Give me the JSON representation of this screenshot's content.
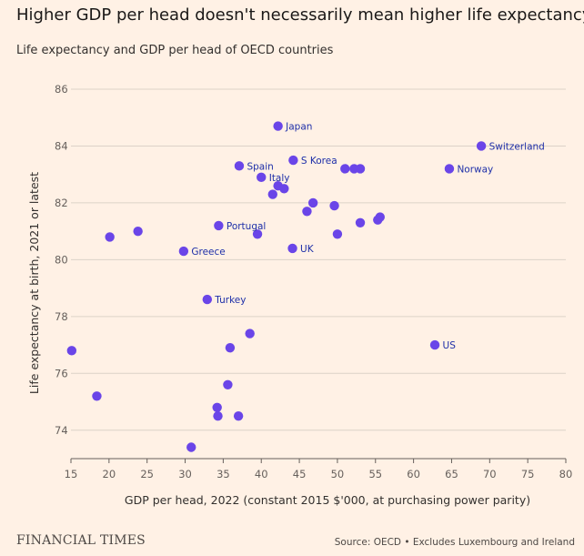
{
  "header": {
    "title": "Higher GDP per head doesn't necessarily mean higher life expectancy",
    "subtitle": "Life expectancy and GDP per head of OECD countries"
  },
  "footer": {
    "publisher": "FINANCIAL TIMES",
    "source": "Source: OECD • Excludes Luxembourg and Ireland"
  },
  "colors": {
    "background": "#fff1e5",
    "point": "#6a45e8",
    "label": "#1e2fa8",
    "grid": "#dcd2c8"
  },
  "chart_data": {
    "type": "scatter",
    "xlabel": "GDP per head, 2022 (constant 2015 $'000, at purchasing power parity)",
    "ylabel": "Life expectancy at birth, 2021 or latest",
    "xlim": [
      15,
      80
    ],
    "ylim": [
      73,
      86
    ],
    "x_ticks": [
      15,
      20,
      25,
      30,
      35,
      40,
      45,
      50,
      55,
      60,
      65,
      70,
      75,
      80
    ],
    "y_ticks": [
      74,
      76,
      78,
      80,
      82,
      84,
      86
    ],
    "grid": "horizontal",
    "points": [
      {
        "x": 42.2,
        "y": 84.7,
        "label": "Japan"
      },
      {
        "x": 68.9,
        "y": 84.0,
        "label": "Switzerland"
      },
      {
        "x": 37.1,
        "y": 83.3,
        "label": "Spain"
      },
      {
        "x": 44.2,
        "y": 83.5,
        "label": "S Korea"
      },
      {
        "x": 64.7,
        "y": 83.2,
        "label": "Norway"
      },
      {
        "x": 51.0,
        "y": 83.2
      },
      {
        "x": 52.2,
        "y": 83.2
      },
      {
        "x": 53.0,
        "y": 83.2
      },
      {
        "x": 40.0,
        "y": 82.9,
        "label": "Italy"
      },
      {
        "x": 42.2,
        "y": 82.6
      },
      {
        "x": 43.0,
        "y": 82.5
      },
      {
        "x": 41.5,
        "y": 82.3
      },
      {
        "x": 46.8,
        "y": 82.0
      },
      {
        "x": 49.6,
        "y": 81.9
      },
      {
        "x": 46.0,
        "y": 81.7
      },
      {
        "x": 55.6,
        "y": 81.5
      },
      {
        "x": 55.3,
        "y": 81.4
      },
      {
        "x": 53.0,
        "y": 81.3
      },
      {
        "x": 34.4,
        "y": 81.2,
        "label": "Portugal"
      },
      {
        "x": 23.8,
        "y": 81.0
      },
      {
        "x": 39.5,
        "y": 80.9
      },
      {
        "x": 50.0,
        "y": 80.9
      },
      {
        "x": 20.1,
        "y": 80.8
      },
      {
        "x": 44.1,
        "y": 80.4,
        "label": "UK"
      },
      {
        "x": 29.8,
        "y": 80.3,
        "label": "Greece"
      },
      {
        "x": 32.9,
        "y": 78.6,
        "label": "Turkey"
      },
      {
        "x": 38.5,
        "y": 77.4
      },
      {
        "x": 62.8,
        "y": 77.0,
        "label": "US"
      },
      {
        "x": 35.9,
        "y": 76.9
      },
      {
        "x": 15.1,
        "y": 76.8
      },
      {
        "x": 35.6,
        "y": 75.6
      },
      {
        "x": 18.4,
        "y": 75.2
      },
      {
        "x": 34.2,
        "y": 74.8
      },
      {
        "x": 34.3,
        "y": 74.5
      },
      {
        "x": 37.0,
        "y": 74.5
      },
      {
        "x": 30.8,
        "y": 73.4
      }
    ]
  }
}
